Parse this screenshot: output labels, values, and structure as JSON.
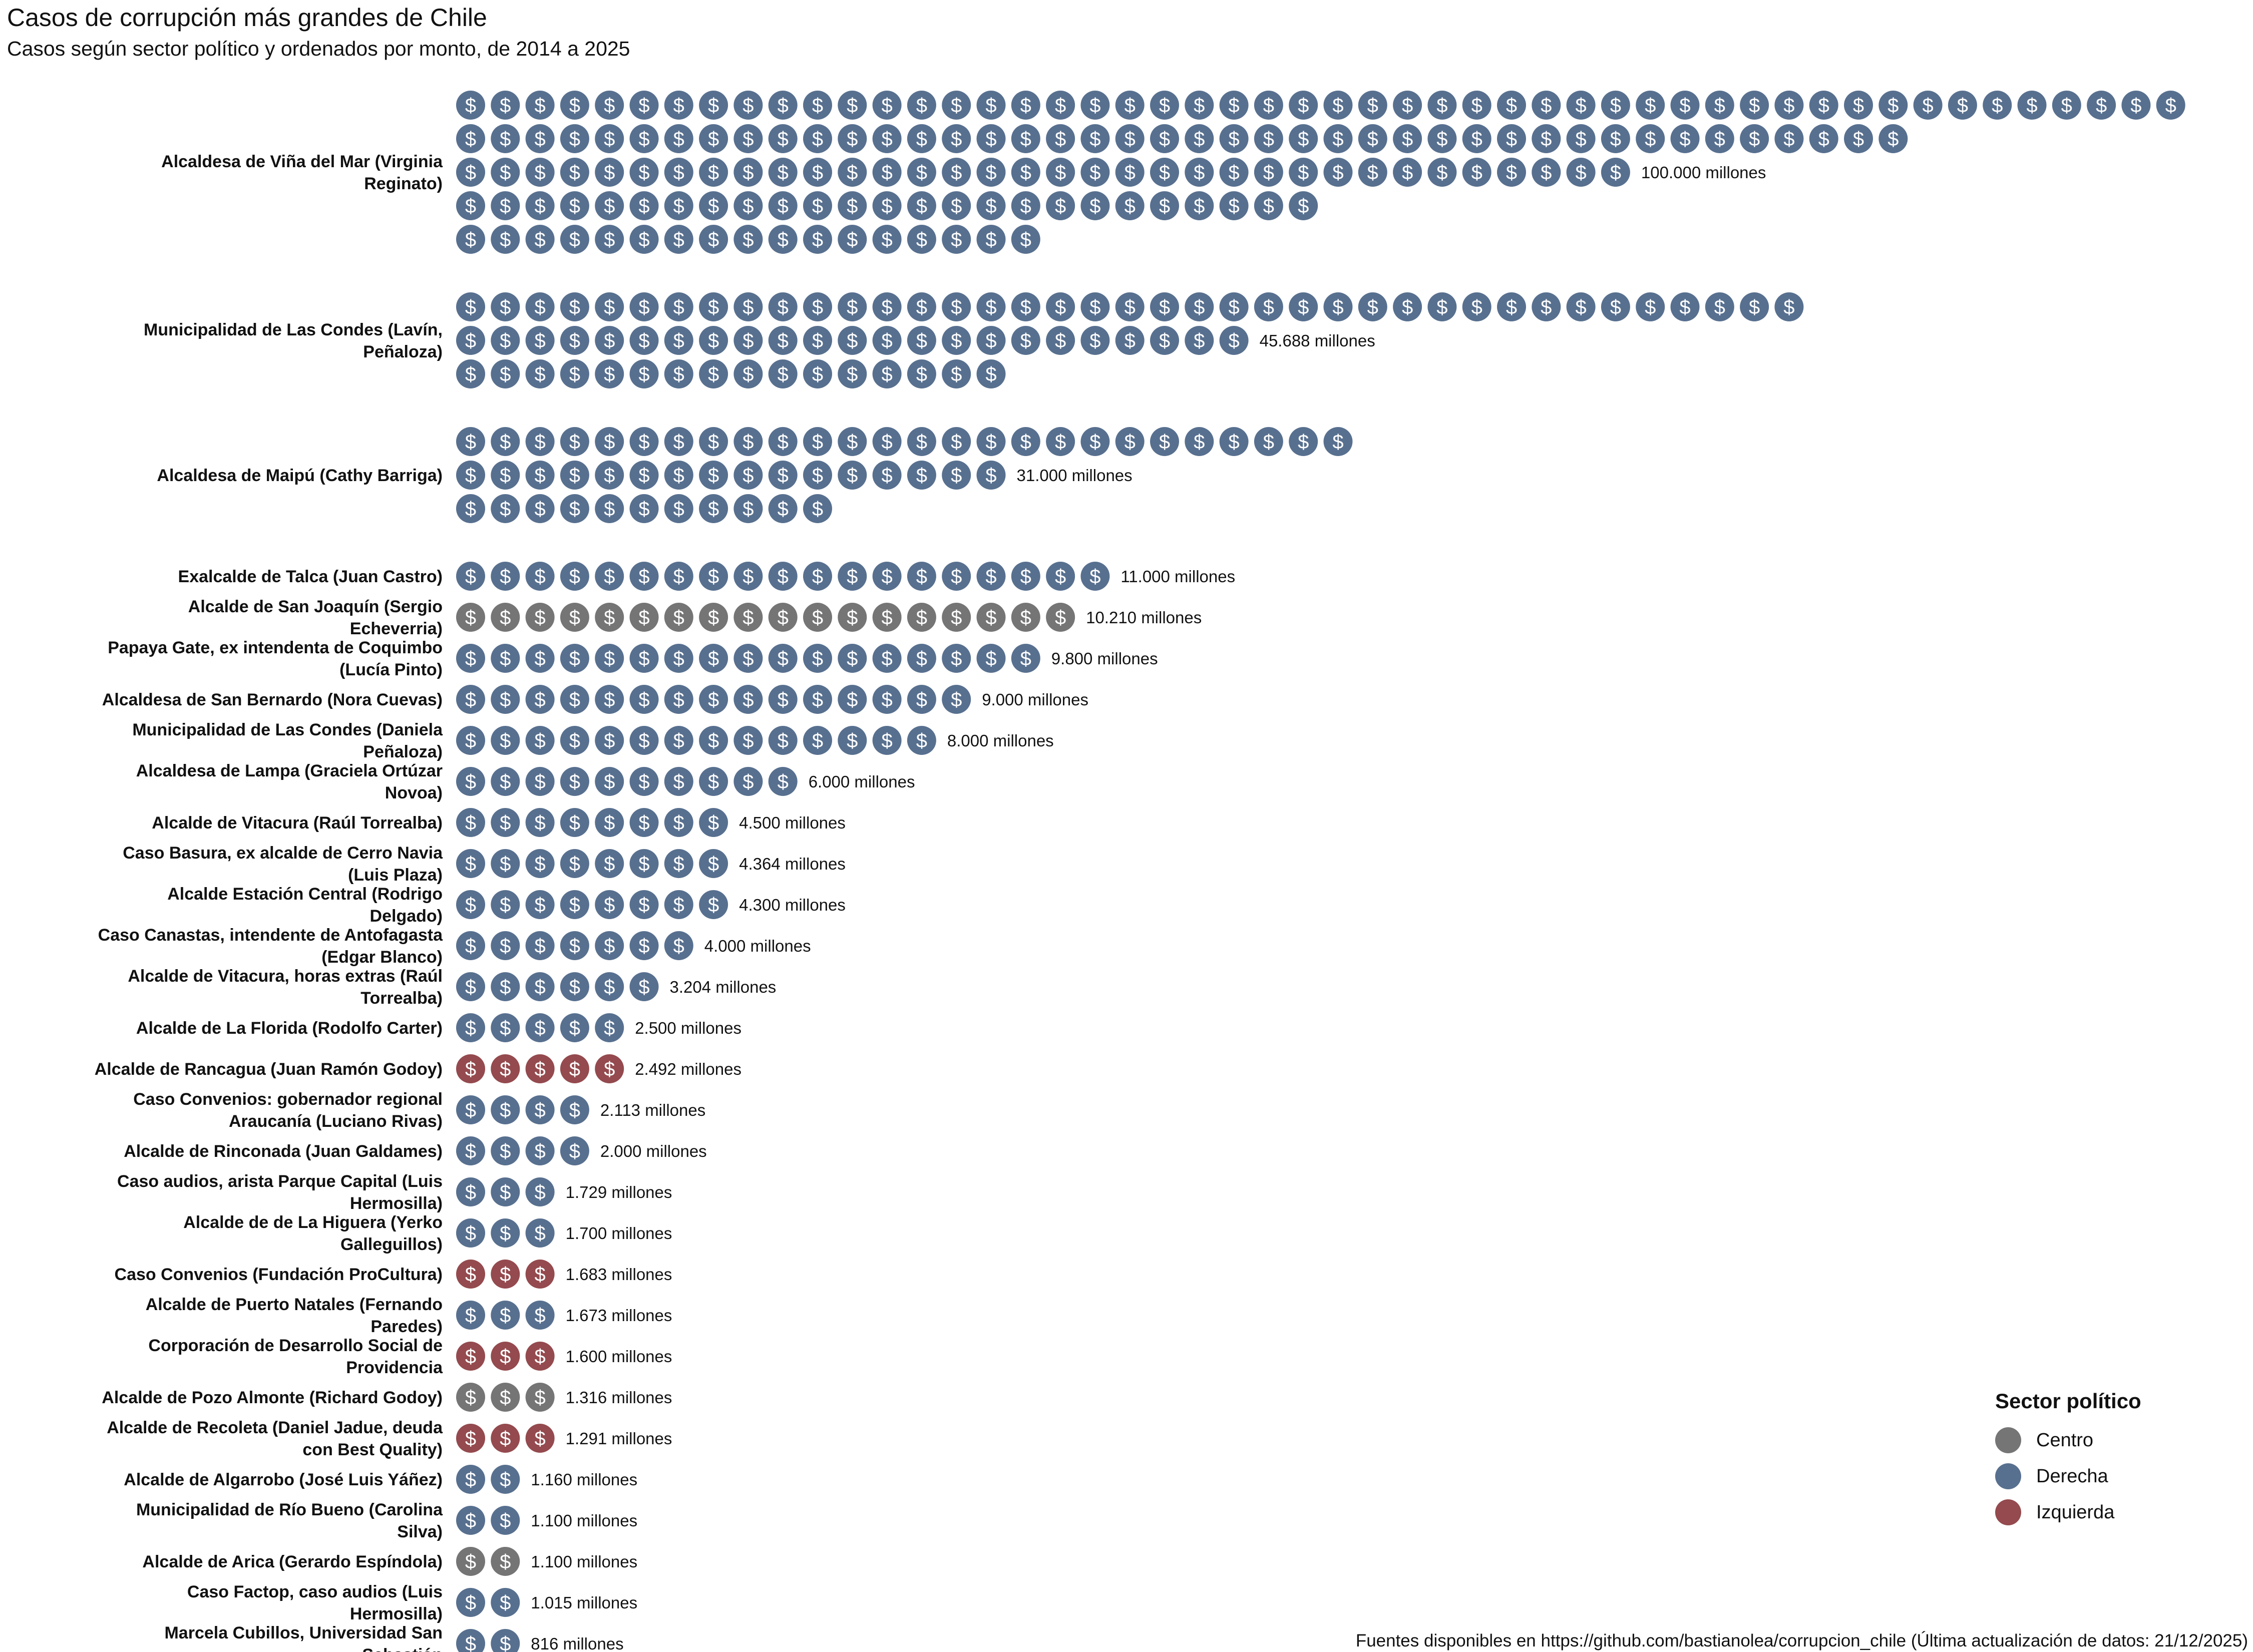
{
  "title": "Casos de corrupción más grandes de Chile",
  "subtitle": "Casos según sector político y ordenados por monto, de 2014 a 2025",
  "caption": "Fuentes disponibles en https://github.com/bastianolea/corrupcion_chile (Última actualización de datos: 21/12/2025)",
  "legend": {
    "title": "Sector político",
    "items": [
      {
        "label": "Centro",
        "color": "#757575"
      },
      {
        "label": "Derecha",
        "color": "#58708f"
      },
      {
        "label": "Izquierda",
        "color": "#944a4e"
      }
    ]
  },
  "chart_data": {
    "type": "pictogram",
    "icon_symbol": "$",
    "x_unit": "millones de pesos",
    "sector_colors": {
      "Centro": "#757575",
      "Derecha": "#58708f",
      "Izquierda": "#944a4e"
    },
    "cases": [
      {
        "label": "Alcaldesa de Viña del Mar (Virginia Reginato)",
        "sector": "Derecha",
        "amount_label": "100.000 millones",
        "rows": [
          50,
          42,
          34,
          25,
          17
        ]
      },
      {
        "label": "Municipalidad de Las Condes (Lavín, Peñaloza)",
        "sector": "Derecha",
        "amount_label": "45.688 millones",
        "rows": [
          39,
          23,
          16
        ]
      },
      {
        "label": "Alcaldesa de Maipú (Cathy Barriga)",
        "sector": "Derecha",
        "amount_label": "31.000 millones",
        "rows": [
          26,
          16,
          11
        ]
      },
      {
        "label": "Exalcalde de Talca (Juan Castro)",
        "sector": "Derecha",
        "amount_label": "11.000 millones",
        "rows": [
          19
        ]
      },
      {
        "label": "Alcalde de San Joaquín (Sergio Echeverria)",
        "sector": "Centro",
        "amount_label": "10.210 millones",
        "rows": [
          18
        ]
      },
      {
        "label": "Papaya Gate, ex intendenta de Coquimbo (Lucía Pinto)",
        "sector": "Derecha",
        "amount_label": "9.800 millones",
        "rows": [
          17
        ]
      },
      {
        "label": "Alcaldesa de San Bernardo (Nora Cuevas)",
        "sector": "Derecha",
        "amount_label": "9.000 millones",
        "rows": [
          15
        ]
      },
      {
        "label": "Municipalidad de Las Condes (Daniela Peñaloza)",
        "sector": "Derecha",
        "amount_label": "8.000 millones",
        "rows": [
          14
        ]
      },
      {
        "label": "Alcaldesa de Lampa (Graciela Ortúzar Novoa)",
        "sector": "Derecha",
        "amount_label": "6.000 millones",
        "rows": [
          10
        ]
      },
      {
        "label": "Alcalde de Vitacura (Raúl Torrealba)",
        "sector": "Derecha",
        "amount_label": "4.500 millones",
        "rows": [
          8
        ]
      },
      {
        "label": "Caso Basura, ex alcalde de Cerro Navia (Luis Plaza)",
        "sector": "Derecha",
        "amount_label": "4.364 millones",
        "rows": [
          8
        ]
      },
      {
        "label": "Alcalde Estación Central (Rodrigo Delgado)",
        "sector": "Derecha",
        "amount_label": "4.300 millones",
        "rows": [
          8
        ]
      },
      {
        "label": "Caso Canastas, intendente de Antofagasta (Edgar Blanco)",
        "sector": "Derecha",
        "amount_label": "4.000 millones",
        "rows": [
          7
        ]
      },
      {
        "label": "Alcalde de Vitacura, horas extras (Raúl Torrealba)",
        "sector": "Derecha",
        "amount_label": "3.204 millones",
        "rows": [
          6
        ]
      },
      {
        "label": "Alcalde de La Florida (Rodolfo Carter)",
        "sector": "Derecha",
        "amount_label": "2.500 millones",
        "rows": [
          5
        ]
      },
      {
        "label": "Alcalde de Rancagua (Juan Ramón Godoy)",
        "sector": "Izquierda",
        "amount_label": "2.492 millones",
        "rows": [
          5
        ]
      },
      {
        "label": "Caso Convenios: gobernador regional Araucanía (Luciano Rivas)",
        "sector": "Derecha",
        "amount_label": "2.113 millones",
        "rows": [
          4
        ]
      },
      {
        "label": "Alcalde de Rinconada (Juan Galdames)",
        "sector": "Derecha",
        "amount_label": "2.000 millones",
        "rows": [
          4
        ]
      },
      {
        "label": "Caso audios, arista Parque Capital (Luis Hermosilla)",
        "sector": "Derecha",
        "amount_label": "1.729 millones",
        "rows": [
          3
        ]
      },
      {
        "label": "Alcalde de de La Higuera (Yerko Galleguillos)",
        "sector": "Derecha",
        "amount_label": "1.700 millones",
        "rows": [
          3
        ]
      },
      {
        "label": "Caso Convenios (Fundación ProCultura)",
        "sector": "Izquierda",
        "amount_label": "1.683 millones",
        "rows": [
          3
        ]
      },
      {
        "label": "Alcalde de Puerto Natales (Fernando Paredes)",
        "sector": "Derecha",
        "amount_label": "1.673 millones",
        "rows": [
          3
        ]
      },
      {
        "label": "Corporación de Desarrollo Social de Providencia",
        "sector": "Izquierda",
        "amount_label": "1.600 millones",
        "rows": [
          3
        ]
      },
      {
        "label": "Alcalde de Pozo Almonte (Richard Godoy)",
        "sector": "Centro",
        "amount_label": "1.316 millones",
        "rows": [
          3
        ]
      },
      {
        "label": "Alcalde de Recoleta (Daniel Jadue, deuda con Best Quality)",
        "sector": "Izquierda",
        "amount_label": "1.291 millones",
        "rows": [
          3
        ]
      },
      {
        "label": "Alcalde de Algarrobo (José Luis Yáñez)",
        "sector": "Derecha",
        "amount_label": "1.160 millones",
        "rows": [
          2
        ]
      },
      {
        "label": "Municipalidad de Río Bueno (Carolina Silva)",
        "sector": "Derecha",
        "amount_label": "1.100 millones",
        "rows": [
          2
        ]
      },
      {
        "label": "Alcalde de Arica (Gerardo Espíndola)",
        "sector": "Centro",
        "amount_label": "1.100 millones",
        "rows": [
          2
        ]
      },
      {
        "label": "Caso Factop, caso audios (Luis Hermosilla)",
        "sector": "Derecha",
        "amount_label": "1.015 millones",
        "rows": [
          2
        ]
      },
      {
        "label": "Marcela Cubillos, Universidad San Sebastián",
        "sector": "Derecha",
        "amount_label": "816 millones",
        "rows": [
          2
        ]
      }
    ]
  }
}
